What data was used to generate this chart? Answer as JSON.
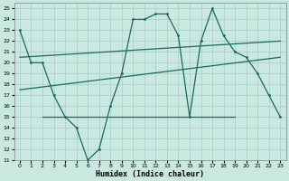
{
  "xlabel": "Humidex (Indice chaleur)",
  "xlim": [
    -0.5,
    23.5
  ],
  "ylim": [
    11,
    25.5
  ],
  "xticks": [
    0,
    1,
    2,
    3,
    4,
    5,
    6,
    7,
    8,
    9,
    10,
    11,
    12,
    13,
    14,
    15,
    16,
    17,
    18,
    19,
    20,
    21,
    22,
    23
  ],
  "yticks": [
    11,
    12,
    13,
    14,
    15,
    16,
    17,
    18,
    19,
    20,
    21,
    22,
    23,
    24,
    25
  ],
  "bg_color": "#c8e8e0",
  "line_color": "#1a6b5a",
  "grid_color": "#a8ccc8",
  "line1_x": [
    0,
    1,
    2,
    3,
    4,
    5,
    6,
    7,
    8,
    9,
    10,
    11,
    12,
    13,
    14,
    15,
    16,
    17,
    18,
    19,
    20,
    21,
    22,
    23
  ],
  "line1_y": [
    23,
    20,
    20,
    17,
    15,
    14,
    11,
    12,
    16,
    19,
    24,
    24,
    24.5,
    24.5,
    22.5,
    15,
    22,
    25,
    22.5,
    21,
    20.5,
    19,
    17,
    15
  ],
  "line2_x": [
    0,
    23
  ],
  "line2_y": [
    20.5,
    22.0
  ],
  "line3_x": [
    0,
    23
  ],
  "line3_y": [
    17.5,
    20.5
  ],
  "line4_x": [
    2,
    19
  ],
  "line4_y": [
    15,
    15
  ],
  "marker_size": 2.0,
  "line_width": 0.9
}
